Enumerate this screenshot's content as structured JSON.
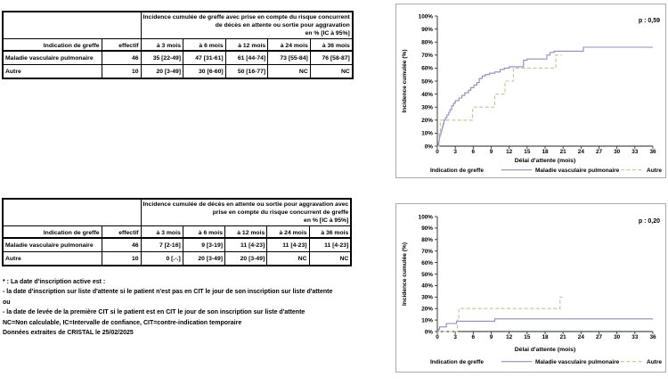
{
  "table1": {
    "band": [
      "Incidence cumulée de greffe avec prise en compte du risque concurrent",
      "de décès en attente ou sortie pour aggravation",
      "en % [IC à 95%]"
    ],
    "columns": [
      "Indication de greffe",
      "effectif",
      "à 3 mois",
      "à 6 mois",
      "à 12 mois",
      "à 24 mois",
      "à 36 mois"
    ],
    "rows": [
      {
        "label": "Maladie vasculaire pulmonaire",
        "effectif": "46",
        "values": [
          "35 [22-49]",
          "47 [31-61]",
          "61 [44-74]",
          "73 [55-84]",
          "76 [58-87]"
        ]
      },
      {
        "label": "Autre",
        "effectif": "10",
        "values": [
          "20 [3-49]",
          "30 [6-60]",
          "50 [16-77]",
          "NC",
          "NC"
        ]
      }
    ]
  },
  "table2": {
    "band": [
      "Incidence cumulée de décès en attente ou sortie pour aggravation avec",
      "prise en compte du risque concurrent de greffe",
      "en % [IC à 95%]"
    ],
    "columns": [
      "Indication de greffe",
      "effectif",
      "à 3 mois",
      "à 6 mois",
      "à 12 mois",
      "à 24 mois",
      "à 36 mois"
    ],
    "rows": [
      {
        "label": "Maladie vasculaire pulmonaire",
        "effectif": "46",
        "values": [
          "7 [2-16]",
          "9 [3-19]",
          "11 [4-23]",
          "11 [4-23]",
          "11 [4-23]"
        ]
      },
      {
        "label": "Autre",
        "effectif": "10",
        "values": [
          "0 [.-.]",
          "20 [3-49]",
          "20 [3-49]",
          "NC",
          "NC"
        ]
      }
    ]
  },
  "footnotes": [
    "* : La date d'inscription active est :",
    "- la date d'inscription sur liste d'attente si le patient n'est pas en CIT le jour de son inscription sur liste d'attente",
    "ou",
    "- la date de levée de la première CIT si le patient est en CIT le jour de son inscription sur liste d'attente",
    "NC=Non calculable, IC=Intervalle de confiance, CIT=contre-indication temporaire",
    "Données extraites de CRISTAL le 25/02/2025"
  ],
  "colors": {
    "mvp_line": "#8b8cc6",
    "autre_line": "#b7cb92",
    "axis": "#222222",
    "chart_border": "#ababab"
  },
  "chart_data": [
    {
      "type": "line",
      "title": "Incidence cumulée de greffe",
      "p_value": "p : 0,59",
      "xlabel": "Délai d'attente (mois)",
      "ylabel": "Incidence cumulée (%)",
      "legend_title": "Indication de greffe",
      "xlim": [
        0,
        36
      ],
      "ylim": [
        0,
        100
      ],
      "xticks": [
        0,
        3,
        6,
        9,
        12,
        15,
        18,
        21,
        24,
        27,
        30,
        33,
        36
      ],
      "yticks": [
        0,
        10,
        20,
        30,
        40,
        50,
        60,
        70,
        80,
        90,
        100
      ],
      "grid": false,
      "legend_position": "bottom",
      "series": [
        {
          "name": "Maladie vasculaire pulmonaire",
          "style": "solid",
          "color": "#8b8cc6",
          "steps": [
            [
              0,
              0
            ],
            [
              0.15,
              2
            ],
            [
              0.25,
              4
            ],
            [
              0.35,
              7
            ],
            [
              0.45,
              9
            ],
            [
              0.6,
              11
            ],
            [
              0.75,
              13
            ],
            [
              0.85,
              15
            ],
            [
              0.95,
              17
            ],
            [
              1.1,
              20
            ],
            [
              1.35,
              22
            ],
            [
              1.6,
              24
            ],
            [
              1.9,
              26
            ],
            [
              2.1,
              28
            ],
            [
              2.4,
              31
            ],
            [
              2.7,
              33
            ],
            [
              3.0,
              35
            ],
            [
              3.6,
              37
            ],
            [
              4.1,
              39
            ],
            [
              4.6,
              41
            ],
            [
              5.2,
              43
            ],
            [
              5.6,
              45
            ],
            [
              6.1,
              47
            ],
            [
              6.6,
              49
            ],
            [
              7.0,
              52
            ],
            [
              7.5,
              54
            ],
            [
              8.0,
              55
            ],
            [
              8.7,
              56
            ],
            [
              9.6,
              57
            ],
            [
              10.5,
              59
            ],
            [
              11.2,
              60
            ],
            [
              12.0,
              61
            ],
            [
              14.4,
              66
            ],
            [
              15.0,
              67
            ],
            [
              18.3,
              70
            ],
            [
              18.8,
              72
            ],
            [
              19.5,
              73
            ],
            [
              24.4,
              76
            ],
            [
              36,
              76
            ]
          ]
        },
        {
          "name": "Autre",
          "style": "dashed",
          "color": "#b7cb92",
          "steps": [
            [
              0,
              0
            ],
            [
              0.3,
              10
            ],
            [
              0.5,
              20
            ],
            [
              5.9,
              30
            ],
            [
              9.6,
              40
            ],
            [
              11.3,
              50
            ],
            [
              12.7,
              60
            ],
            [
              19.8,
              70
            ],
            [
              20.8,
              70
            ]
          ]
        }
      ]
    },
    {
      "type": "line",
      "title": "Incidence cumulée de décès en attente ou sortie pour aggravation",
      "p_value": "p : 0,20",
      "xlabel": "Délai d'attente (mois)",
      "ylabel": "Incidence cumulée (%)",
      "legend_title": "Indication de greffe",
      "xlim": [
        0,
        36
      ],
      "ylim": [
        0,
        100
      ],
      "xticks": [
        0,
        3,
        6,
        9,
        12,
        15,
        18,
        21,
        24,
        27,
        30,
        33,
        36
      ],
      "yticks": [
        0,
        10,
        20,
        30,
        40,
        50,
        60,
        70,
        80,
        90,
        100
      ],
      "grid": false,
      "legend_position": "bottom",
      "series": [
        {
          "name": "Maladie vasculaire pulmonaire",
          "style": "solid",
          "color": "#8b8cc6",
          "steps": [
            [
              0,
              0
            ],
            [
              0.2,
              2
            ],
            [
              0.35,
              4
            ],
            [
              1.5,
              7
            ],
            [
              3.2,
              9
            ],
            [
              9.6,
              11
            ],
            [
              36,
              11
            ]
          ]
        },
        {
          "name": "Autre",
          "style": "dashed",
          "color": "#b7cb92",
          "steps": [
            [
              0,
              0
            ],
            [
              3.35,
              10
            ],
            [
              3.6,
              20
            ],
            [
              20.5,
              30
            ],
            [
              20.9,
              30
            ]
          ]
        }
      ]
    }
  ]
}
